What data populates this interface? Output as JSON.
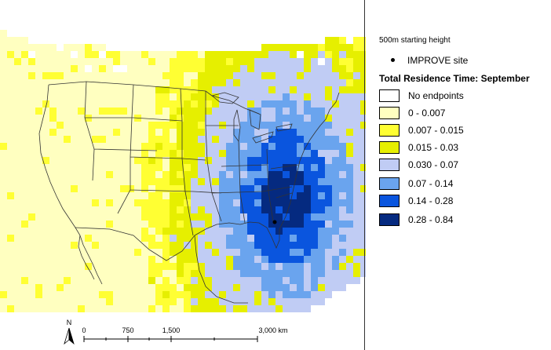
{
  "legend": {
    "subtitle": "500m starting height",
    "site_label": "IMPROVE site",
    "title": "Total Residence Time: September",
    "classes": [
      {
        "label": "No endpoints",
        "color": "#ffffff"
      },
      {
        "label": "0 - 0.007",
        "color": "#ffffc0"
      },
      {
        "label": "0.007 - 0.015",
        "color": "#ffff33"
      },
      {
        "label": "0.015 - 0.03",
        "color": "#e6ef00"
      },
      {
        "label": "0.030 - 0.07",
        "color": "#c0ccf4"
      },
      {
        "label": "0.07 - 0.14",
        "color": "#6aa4ee"
      },
      {
        "label": "0.14 - 0.28",
        "color": "#0a55de"
      },
      {
        "label": "0.28 - 0.84",
        "color": "#052a80"
      }
    ]
  },
  "map": {
    "north_label": "N",
    "scale_labels": [
      "0",
      "750",
      "1,500",
      "3,000 km"
    ],
    "ocean_color": "#ffffff",
    "boundary_color": "#333333"
  }
}
